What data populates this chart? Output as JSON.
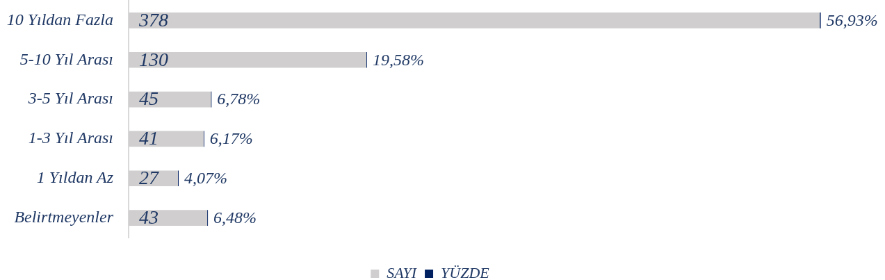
{
  "chart_data": {
    "type": "bar",
    "orientation": "horizontal",
    "stacked": true,
    "categories": [
      "10 Yıldan Fazla",
      "5-10 Yıl Arası",
      "3-5 Yıl Arası",
      "1-3 Yıl Arası",
      "1 Yıldan Az",
      "Belirtmeyenler"
    ],
    "series": [
      {
        "name": "SAYI",
        "color": "#d0cece",
        "values": [
          378,
          130,
          45,
          41,
          27,
          43
        ],
        "value_labels": [
          "378",
          "130",
          "45",
          "41",
          "27",
          "43"
        ]
      },
      {
        "name": "YÜZDE",
        "color": "#002060",
        "values": [
          0.5693,
          0.1958,
          0.0678,
          0.0617,
          0.0407,
          0.0648
        ],
        "value_labels": [
          "56,93%",
          "19,58%",
          "6,78%",
          "6,17%",
          "4,07%",
          "6,48%"
        ]
      }
    ],
    "tick_labels": "y",
    "legend": "bottom"
  }
}
